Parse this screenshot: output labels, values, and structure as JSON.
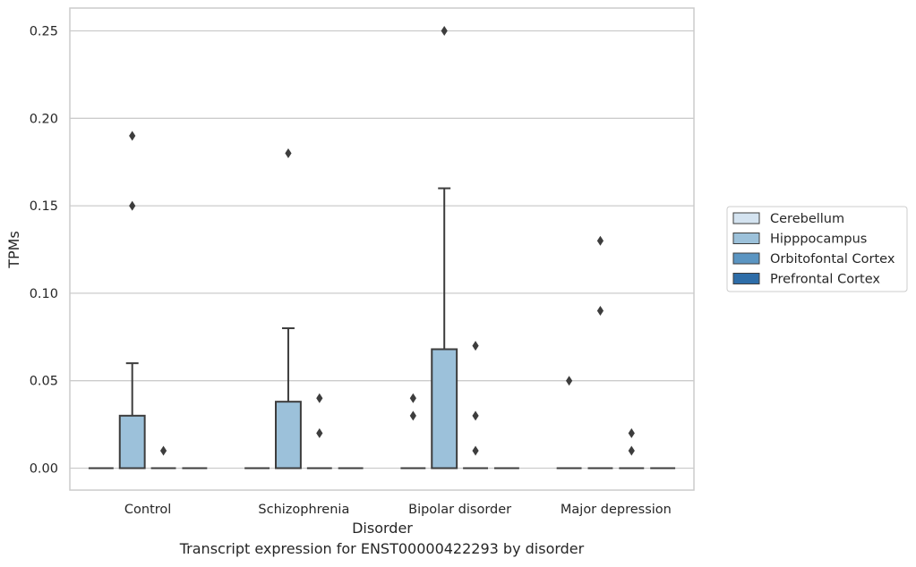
{
  "chart_data": {
    "type": "box",
    "title": "",
    "xlabel": "Disorder",
    "ylabel": "TPMs",
    "caption": "Transcript expression for ENST00000422293 by disorder",
    "categories": [
      "Control",
      "Schizophrenia",
      "Bipolar disorder",
      "Major depression"
    ],
    "ylim": [
      -0.012,
      0.263
    ],
    "yticks": [
      0.0,
      0.05,
      0.1,
      0.15,
      0.2,
      0.25
    ],
    "ytick_labels": [
      "0.00",
      "0.05",
      "0.10",
      "0.15",
      "0.20",
      "0.25"
    ],
    "grid": "horizontal",
    "legend_position": "right",
    "series": [
      {
        "name": "Cerebellum",
        "color": "#d4e3f0",
        "boxes": [
          {
            "q1": 0,
            "median": 0,
            "q3": 0,
            "whisker_low": 0,
            "whisker_high": 0,
            "outliers": []
          },
          {
            "q1": 0,
            "median": 0,
            "q3": 0,
            "whisker_low": 0,
            "whisker_high": 0,
            "outliers": []
          },
          {
            "q1": 0,
            "median": 0,
            "q3": 0,
            "whisker_low": 0,
            "whisker_high": 0,
            "outliers": [
              0.03,
              0.04
            ]
          },
          {
            "q1": 0,
            "median": 0,
            "q3": 0,
            "whisker_low": 0,
            "whisker_high": 0,
            "outliers": [
              0.05
            ]
          }
        ]
      },
      {
        "name": "Hipppocampus",
        "color": "#9cc1da",
        "boxes": [
          {
            "q1": 0,
            "median": 0,
            "q3": 0.03,
            "whisker_low": 0,
            "whisker_high": 0.06,
            "outliers": [
              0.15,
              0.19
            ]
          },
          {
            "q1": 0,
            "median": 0,
            "q3": 0.038,
            "whisker_low": 0,
            "whisker_high": 0.08,
            "outliers": [
              0.18
            ]
          },
          {
            "q1": 0,
            "median": 0,
            "q3": 0.068,
            "whisker_low": 0,
            "whisker_high": 0.16,
            "outliers": [
              0.25
            ]
          },
          {
            "q1": 0,
            "median": 0,
            "q3": 0,
            "whisker_low": 0,
            "whisker_high": 0,
            "outliers": [
              0.09,
              0.13
            ]
          }
        ]
      },
      {
        "name": "Orbitofontal Cortex",
        "color": "#5b95c2",
        "boxes": [
          {
            "q1": 0,
            "median": 0,
            "q3": 0,
            "whisker_low": 0,
            "whisker_high": 0,
            "outliers": [
              0.01
            ]
          },
          {
            "q1": 0,
            "median": 0,
            "q3": 0,
            "whisker_low": 0,
            "whisker_high": 0,
            "outliers": [
              0.02,
              0.04
            ]
          },
          {
            "q1": 0,
            "median": 0,
            "q3": 0,
            "whisker_low": 0,
            "whisker_high": 0,
            "outliers": [
              0.01,
              0.03,
              0.07
            ]
          },
          {
            "q1": 0,
            "median": 0,
            "q3": 0,
            "whisker_low": 0,
            "whisker_high": 0,
            "outliers": [
              0.01,
              0.02
            ]
          }
        ]
      },
      {
        "name": "Prefrontal Cortex",
        "color": "#2e6da8",
        "boxes": [
          {
            "q1": 0,
            "median": 0,
            "q3": 0,
            "whisker_low": 0,
            "whisker_high": 0,
            "outliers": []
          },
          {
            "q1": 0,
            "median": 0,
            "q3": 0,
            "whisker_low": 0,
            "whisker_high": 0,
            "outliers": []
          },
          {
            "q1": 0,
            "median": 0,
            "q3": 0,
            "whisker_low": 0,
            "whisker_high": 0,
            "outliers": []
          },
          {
            "q1": 0,
            "median": 0,
            "q3": 0,
            "whisker_low": 0,
            "whisker_high": 0,
            "outliers": []
          }
        ]
      }
    ]
  }
}
